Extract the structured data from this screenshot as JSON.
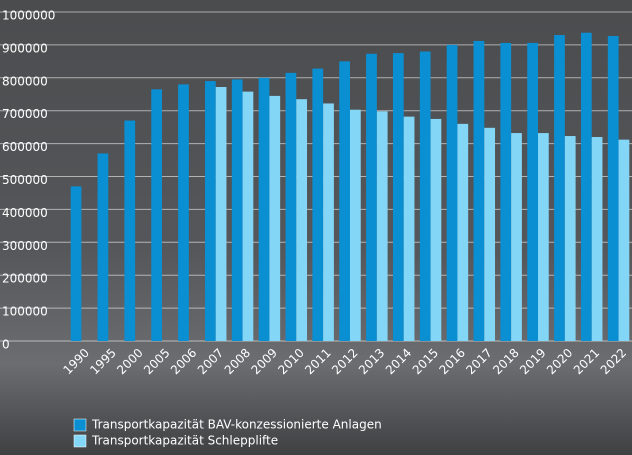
{
  "chart_data": {
    "type": "bar",
    "categories": [
      "1990",
      "1995",
      "2000",
      "2005",
      "2006",
      "2007",
      "2008",
      "2009",
      "2010",
      "2011",
      "2012",
      "2013",
      "2014",
      "2015",
      "2016",
      "2017",
      "2018",
      "2019",
      "2020",
      "2021",
      "2022"
    ],
    "series": [
      {
        "name": "Transportkapazität BAV-konzessionierte Anlagen",
        "color": "#0b8fd3",
        "values": [
          470000,
          570000,
          670000,
          765000,
          780000,
          790000,
          795000,
          800000,
          815000,
          828000,
          850000,
          873000,
          875000,
          880000,
          900000,
          912000,
          906000,
          906000,
          930000,
          937000,
          927000
        ]
      },
      {
        "name": "Transportkapazität Schlepplifte",
        "color": "#84d6f7",
        "values": [
          null,
          null,
          null,
          null,
          null,
          772000,
          758000,
          745000,
          735000,
          722000,
          703000,
          698000,
          682000,
          675000,
          660000,
          648000,
          632000,
          632000,
          623000,
          620000,
          612000
        ]
      }
    ],
    "ylim": [
      0,
      1000000
    ],
    "yticks": [
      0,
      100000,
      200000,
      300000,
      400000,
      500000,
      600000,
      700000,
      800000,
      900000,
      1000000
    ],
    "grid": true
  }
}
